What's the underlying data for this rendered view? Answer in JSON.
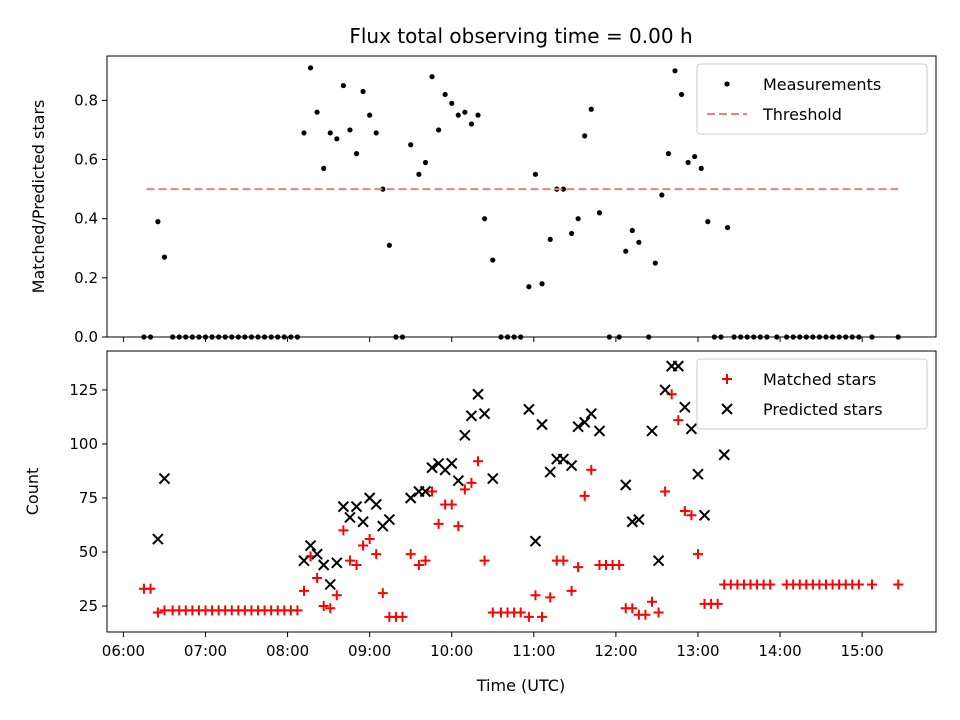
{
  "figure": {
    "title": "Flux total observing time = 0.00 h"
  },
  "chart_data": [
    {
      "type": "scatter",
      "title": "Flux total observing time = 0.00 h",
      "xlabel": "",
      "ylabel": "Matched/Predicted stars",
      "xlim": [
        -0.2,
        9.9
      ],
      "ylim": [
        0,
        0.95
      ],
      "x_is_hours_after_0600": true,
      "yticks": [
        0.0,
        0.2,
        0.4,
        0.6,
        0.8
      ],
      "ytick_labels": [
        "0.0",
        "0.2",
        "0.4",
        "0.6",
        "0.8"
      ],
      "xticks": [
        0,
        1,
        2,
        3,
        4,
        5,
        6,
        7,
        8,
        9
      ],
      "legend": "top-right",
      "series": [
        {
          "name": "Measurements",
          "marker": "dot",
          "color": "#000000",
          "points": [
            [
              0.25,
              0
            ],
            [
              0.33,
              0
            ],
            [
              0.42,
              0.39
            ],
            [
              0.5,
              0.27
            ],
            [
              0.6,
              0
            ],
            [
              0.68,
              0
            ],
            [
              0.76,
              0
            ],
            [
              0.84,
              0
            ],
            [
              0.92,
              0
            ],
            [
              1.0,
              0
            ],
            [
              1.08,
              0
            ],
            [
              1.16,
              0
            ],
            [
              1.24,
              0
            ],
            [
              1.32,
              0
            ],
            [
              1.4,
              0
            ],
            [
              1.48,
              0
            ],
            [
              1.56,
              0
            ],
            [
              1.64,
              0
            ],
            [
              1.72,
              0
            ],
            [
              1.8,
              0
            ],
            [
              1.88,
              0
            ],
            [
              1.96,
              0
            ],
            [
              2.04,
              0
            ],
            [
              2.12,
              0
            ],
            [
              2.2,
              0.69
            ],
            [
              2.28,
              0.91
            ],
            [
              2.36,
              0.76
            ],
            [
              2.44,
              0.57
            ],
            [
              2.52,
              0.69
            ],
            [
              2.6,
              0.67
            ],
            [
              2.68,
              0.85
            ],
            [
              2.76,
              0.7
            ],
            [
              2.84,
              0.62
            ],
            [
              2.92,
              0.83
            ],
            [
              3.0,
              0.75
            ],
            [
              3.08,
              0.69
            ],
            [
              3.16,
              0.5
            ],
            [
              3.24,
              0.31
            ],
            [
              3.32,
              0
            ],
            [
              3.4,
              0
            ],
            [
              3.5,
              0.65
            ],
            [
              3.6,
              0.55
            ],
            [
              3.68,
              0.59
            ],
            [
              3.76,
              0.88
            ],
            [
              3.84,
              0.7
            ],
            [
              3.92,
              0.82
            ],
            [
              4.0,
              0.79
            ],
            [
              4.08,
              0.75
            ],
            [
              4.16,
              0.76
            ],
            [
              4.24,
              0.72
            ],
            [
              4.32,
              0.75
            ],
            [
              4.4,
              0.4
            ],
            [
              4.5,
              0.26
            ],
            [
              4.6,
              0
            ],
            [
              4.68,
              0
            ],
            [
              4.76,
              0
            ],
            [
              4.84,
              0
            ],
            [
              4.94,
              0.17
            ],
            [
              5.02,
              0.55
            ],
            [
              5.1,
              0.18
            ],
            [
              5.2,
              0.33
            ],
            [
              5.28,
              0.5
            ],
            [
              5.36,
              0.5
            ],
            [
              5.46,
              0.35
            ],
            [
              5.54,
              0.4
            ],
            [
              5.62,
              0.68
            ],
            [
              5.7,
              0.77
            ],
            [
              5.8,
              0.42
            ],
            [
              5.92,
              0
            ],
            [
              6.04,
              0
            ],
            [
              6.12,
              0.29
            ],
            [
              6.2,
              0.36
            ],
            [
              6.28,
              0.32
            ],
            [
              6.4,
              0
            ],
            [
              6.48,
              0.25
            ],
            [
              6.56,
              0.48
            ],
            [
              6.64,
              0.62
            ],
            [
              6.72,
              0.9
            ],
            [
              6.8,
              0.82
            ],
            [
              6.88,
              0.59
            ],
            [
              6.96,
              0.61
            ],
            [
              7.04,
              0.57
            ],
            [
              7.12,
              0.39
            ],
            [
              7.2,
              0
            ],
            [
              7.28,
              0
            ],
            [
              7.36,
              0.37
            ],
            [
              7.44,
              0
            ],
            [
              7.52,
              0
            ],
            [
              7.6,
              0
            ],
            [
              7.68,
              0
            ],
            [
              7.76,
              0
            ],
            [
              7.84,
              0
            ],
            [
              7.96,
              0
            ],
            [
              8.08,
              0
            ],
            [
              8.16,
              0
            ],
            [
              8.24,
              0
            ],
            [
              8.32,
              0
            ],
            [
              8.4,
              0
            ],
            [
              8.48,
              0
            ],
            [
              8.56,
              0
            ],
            [
              8.64,
              0
            ],
            [
              8.72,
              0
            ],
            [
              8.8,
              0
            ],
            [
              8.88,
              0
            ],
            [
              8.96,
              0
            ],
            [
              9.12,
              0
            ],
            [
              9.44,
              0
            ]
          ]
        },
        {
          "name": "Threshold",
          "marker": "dashed-line",
          "color": "#f08080",
          "points": [
            [
              0.28,
              0.5
            ],
            [
              9.44,
              0.5
            ]
          ]
        }
      ]
    },
    {
      "type": "scatter",
      "title": "",
      "xlabel": "Time (UTC)",
      "ylabel": "Count",
      "xlim": [
        -0.2,
        9.9
      ],
      "ylim": [
        13,
        143
      ],
      "yticks": [
        25,
        50,
        75,
        100,
        125
      ],
      "ytick_labels": [
        "25",
        "50",
        "75",
        "100",
        "125"
      ],
      "xticks": [
        0,
        1,
        2,
        3,
        4,
        5,
        6,
        7,
        8,
        9
      ],
      "xtick_labels": [
        "06:00",
        "07:00",
        "08:00",
        "09:00",
        "10:00",
        "11:00",
        "12:00",
        "13:00",
        "14:00",
        "15:00"
      ],
      "legend": "top-right",
      "series": [
        {
          "name": "Matched stars",
          "marker": "plus",
          "color": "#ff0000",
          "points": [
            [
              0.25,
              33
            ],
            [
              0.33,
              33
            ],
            [
              0.42,
              22
            ],
            [
              0.5,
              23
            ],
            [
              0.6,
              23
            ],
            [
              0.68,
              23
            ],
            [
              0.76,
              23
            ],
            [
              0.84,
              23
            ],
            [
              0.92,
              23
            ],
            [
              1.0,
              23
            ],
            [
              1.08,
              23
            ],
            [
              1.16,
              23
            ],
            [
              1.24,
              23
            ],
            [
              1.32,
              23
            ],
            [
              1.4,
              23
            ],
            [
              1.48,
              23
            ],
            [
              1.56,
              23
            ],
            [
              1.64,
              23
            ],
            [
              1.72,
              23
            ],
            [
              1.8,
              23
            ],
            [
              1.88,
              23
            ],
            [
              1.96,
              23
            ],
            [
              2.04,
              23
            ],
            [
              2.12,
              23
            ],
            [
              2.2,
              32
            ],
            [
              2.28,
              48
            ],
            [
              2.36,
              38
            ],
            [
              2.44,
              25
            ],
            [
              2.52,
              24
            ],
            [
              2.6,
              30
            ],
            [
              2.68,
              60
            ],
            [
              2.76,
              46
            ],
            [
              2.84,
              44
            ],
            [
              2.92,
              53
            ],
            [
              3.0,
              56
            ],
            [
              3.08,
              49
            ],
            [
              3.16,
              31
            ],
            [
              3.24,
              20
            ],
            [
              3.32,
              20
            ],
            [
              3.4,
              20
            ],
            [
              3.5,
              49
            ],
            [
              3.6,
              44
            ],
            [
              3.68,
              46
            ],
            [
              3.76,
              78
            ],
            [
              3.84,
              63
            ],
            [
              3.92,
              72
            ],
            [
              4.0,
              72
            ],
            [
              4.08,
              62
            ],
            [
              4.16,
              79
            ],
            [
              4.24,
              82
            ],
            [
              4.32,
              92
            ],
            [
              4.4,
              46
            ],
            [
              4.5,
              22
            ],
            [
              4.6,
              22
            ],
            [
              4.68,
              22
            ],
            [
              4.76,
              22
            ],
            [
              4.84,
              22
            ],
            [
              4.94,
              20
            ],
            [
              5.02,
              30
            ],
            [
              5.1,
              20
            ],
            [
              5.2,
              29
            ],
            [
              5.28,
              46
            ],
            [
              5.36,
              46
            ],
            [
              5.46,
              32
            ],
            [
              5.54,
              43
            ],
            [
              5.62,
              76
            ],
            [
              5.7,
              88
            ],
            [
              5.8,
              44
            ],
            [
              5.88,
              44
            ],
            [
              5.96,
              44
            ],
            [
              6.04,
              44
            ],
            [
              6.12,
              24
            ],
            [
              6.2,
              24
            ],
            [
              6.28,
              21
            ],
            [
              6.36,
              21
            ],
            [
              6.44,
              27
            ],
            [
              6.52,
              22
            ],
            [
              6.6,
              78
            ],
            [
              6.68,
              123
            ],
            [
              6.76,
              111
            ],
            [
              6.84,
              69
            ],
            [
              6.92,
              67
            ],
            [
              7.0,
              49
            ],
            [
              7.08,
              26
            ],
            [
              7.16,
              26
            ],
            [
              7.24,
              26
            ],
            [
              7.32,
              35
            ],
            [
              7.4,
              35
            ],
            [
              7.48,
              35
            ],
            [
              7.56,
              35
            ],
            [
              7.64,
              35
            ],
            [
              7.72,
              35
            ],
            [
              7.8,
              35
            ],
            [
              7.88,
              35
            ],
            [
              8.08,
              35
            ],
            [
              8.16,
              35
            ],
            [
              8.24,
              35
            ],
            [
              8.32,
              35
            ],
            [
              8.4,
              35
            ],
            [
              8.48,
              35
            ],
            [
              8.56,
              35
            ],
            [
              8.64,
              35
            ],
            [
              8.72,
              35
            ],
            [
              8.8,
              35
            ],
            [
              8.88,
              35
            ],
            [
              8.96,
              35
            ],
            [
              9.12,
              35
            ],
            [
              9.44,
              35
            ]
          ]
        },
        {
          "name": "Predicted stars",
          "marker": "x",
          "color": "#000000",
          "points": [
            [
              0.42,
              56
            ],
            [
              0.5,
              84
            ],
            [
              2.2,
              46
            ],
            [
              2.28,
              53
            ],
            [
              2.36,
              49
            ],
            [
              2.44,
              44
            ],
            [
              2.52,
              35
            ],
            [
              2.6,
              45
            ],
            [
              2.68,
              71
            ],
            [
              2.76,
              66
            ],
            [
              2.84,
              71
            ],
            [
              2.92,
              64
            ],
            [
              3.0,
              75
            ],
            [
              3.08,
              72
            ],
            [
              3.16,
              62
            ],
            [
              3.24,
              65
            ],
            [
              3.5,
              75
            ],
            [
              3.6,
              78
            ],
            [
              3.68,
              78
            ],
            [
              3.76,
              89
            ],
            [
              3.84,
              91
            ],
            [
              3.92,
              88
            ],
            [
              4.0,
              91
            ],
            [
              4.08,
              83
            ],
            [
              4.16,
              104
            ],
            [
              4.24,
              113
            ],
            [
              4.32,
              123
            ],
            [
              4.4,
              114
            ],
            [
              4.5,
              84
            ],
            [
              4.94,
              116
            ],
            [
              5.02,
              55
            ],
            [
              5.1,
              109
            ],
            [
              5.2,
              87
            ],
            [
              5.28,
              93
            ],
            [
              5.36,
              93
            ],
            [
              5.46,
              90
            ],
            [
              5.54,
              108
            ],
            [
              5.62,
              110
            ],
            [
              5.7,
              114
            ],
            [
              5.8,
              106
            ],
            [
              6.12,
              81
            ],
            [
              6.2,
              64
            ],
            [
              6.28,
              65
            ],
            [
              6.44,
              106
            ],
            [
              6.52,
              46
            ],
            [
              6.6,
              125
            ],
            [
              6.68,
              136
            ],
            [
              6.76,
              136
            ],
            [
              6.84,
              117
            ],
            [
              6.92,
              107
            ],
            [
              7.0,
              86
            ],
            [
              7.08,
              67
            ],
            [
              7.32,
              95
            ]
          ]
        }
      ]
    }
  ]
}
